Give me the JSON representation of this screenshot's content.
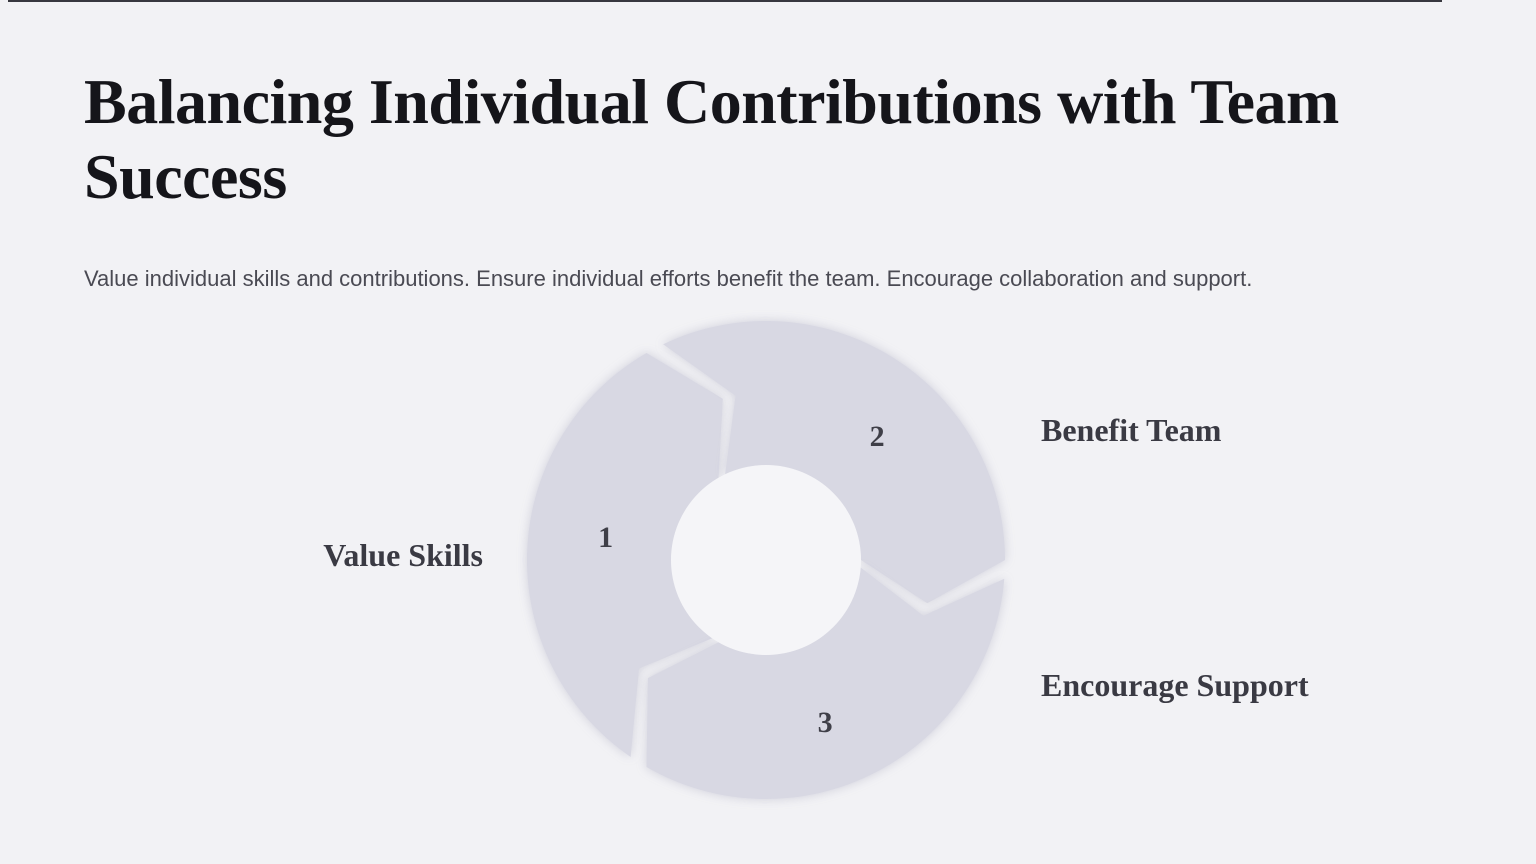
{
  "slide": {
    "title_lines": [
      "Balancing Individual Contributions with Team",
      "Success"
    ],
    "subtitle": "Value individual skills and contributions. Ensure individual efforts benefit the team. Encourage collaboration and support."
  },
  "diagram": {
    "type": "cycle",
    "direction": "clockwise",
    "steps": [
      {
        "number": "1",
        "label": "Value Skills"
      },
      {
        "number": "2",
        "label": "Benefit Team"
      },
      {
        "number": "3",
        "label": "Encourage Support"
      }
    ]
  },
  "colors": {
    "background": "#f2f2f5",
    "segment": "#d8d8e3",
    "hole": "#f5f5f8",
    "title": "#15151a",
    "subtitle": "#4a4a53",
    "label": "#3a3a43",
    "number": "#3f3f48",
    "top_rule": "#23232b"
  }
}
